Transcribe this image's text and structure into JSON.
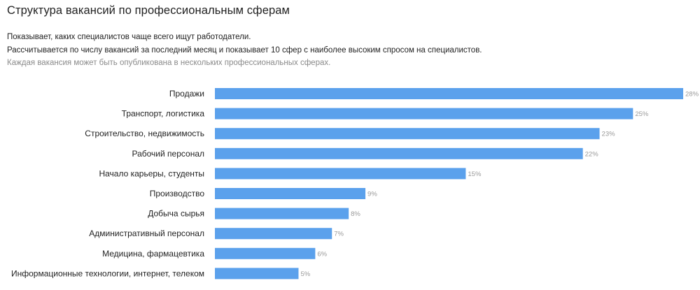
{
  "page": {
    "title": "Структура вакансий по профессиональным сферам",
    "description_lines": [
      "Показывает, каких специалистов чаще всего ищут работодатели.",
      "Рассчитывается по числу вакансий за последний месяц и показывает 10 сфер с наиболее высоким спросом на специалистов.",
      "Каждая вакансия может быть опубликована в нескольких профессиональных сферах."
    ]
  },
  "colors": {
    "bar": "#5ba1ec",
    "value_label": "#9a9a9a"
  },
  "chart_data": {
    "type": "bar",
    "orientation": "horizontal",
    "categories": [
      "Продажи",
      "Транспорт, логистика",
      "Строительство, недвижимость",
      "Рабочий персонал",
      "Начало карьеры, студенты",
      "Производство",
      "Добыча сырья",
      "Административный персонал",
      "Медицина, фармацевтика",
      "Информационные технологии, интернет, телеком"
    ],
    "values": [
      28,
      25,
      23,
      22,
      15,
      9,
      8,
      7,
      6,
      5
    ],
    "value_labels": [
      "28%",
      "25%",
      "23%",
      "22%",
      "15%",
      "9%",
      "8%",
      "7%",
      "6%",
      "5%"
    ],
    "xlim": [
      0,
      28
    ],
    "grid": false
  }
}
